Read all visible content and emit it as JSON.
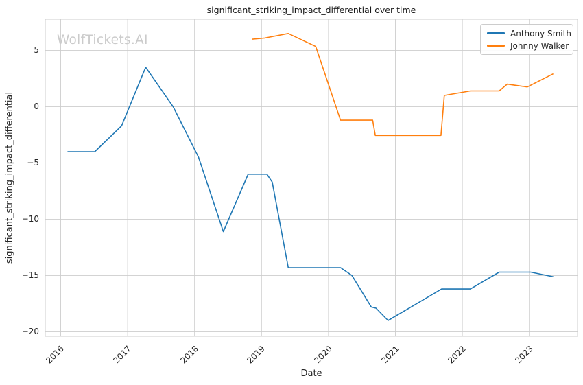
{
  "chart": {
    "title": "significant_striking_impact_differential over time",
    "watermark": "WolfTickets.AI",
    "xlabel": "Date",
    "ylabel": "significant_striking_impact_differential"
  },
  "chart_data": {
    "type": "line",
    "title": "significant_striking_impact_differential over time",
    "xlabel": "Date",
    "ylabel": "significant_striking_impact_differential",
    "xlim": [
      2015.77,
      2023.72
    ],
    "ylim": [
      -20.4,
      7.77
    ],
    "x_ticks": [
      2016,
      2017,
      2018,
      2019,
      2020,
      2021,
      2022,
      2023
    ],
    "y_ticks": [
      5,
      0,
      -5,
      -10,
      -15,
      -20
    ],
    "grid": true,
    "legend_position": "upper right",
    "series": [
      {
        "name": "Anthony Smith",
        "color": "#1f77b4",
        "x": [
          2016.11,
          2016.51,
          2016.91,
          2017.27,
          2017.68,
          2018.06,
          2018.43,
          2018.8,
          2019.08,
          2019.16,
          2019.4,
          2020.18,
          2020.35,
          2020.64,
          2020.71,
          2020.89,
          2021.69,
          2022.12,
          2022.55,
          2023.02,
          2023.35
        ],
        "y": [
          -4.0,
          -4.0,
          -1.7,
          3.5,
          0.0,
          -4.5,
          -11.1,
          -6.0,
          -6.0,
          -6.7,
          -14.3,
          -14.3,
          -15.0,
          -17.8,
          -17.9,
          -19.0,
          -16.2,
          -16.2,
          -14.7,
          -14.7,
          -15.1
        ]
      },
      {
        "name": "Johnny Walker",
        "color": "#ff7f0e",
        "x": [
          2018.87,
          2019.05,
          2019.4,
          2019.81,
          2020.18,
          2020.66,
          2020.7,
          2021.68,
          2021.73,
          2022.12,
          2022.55,
          2022.67,
          2022.97,
          2023.35
        ],
        "y": [
          6.0,
          6.1,
          6.5,
          5.35,
          -1.2,
          -1.2,
          -2.55,
          -2.55,
          1.0,
          1.4,
          1.4,
          2.0,
          1.75,
          2.9
        ]
      }
    ]
  },
  "style": {
    "grid_color": "#cdcdcd",
    "spine_color": "#cccccc",
    "text_color": "#262626",
    "watermark_color": "#cbcbcb",
    "background": "#ffffff"
  }
}
